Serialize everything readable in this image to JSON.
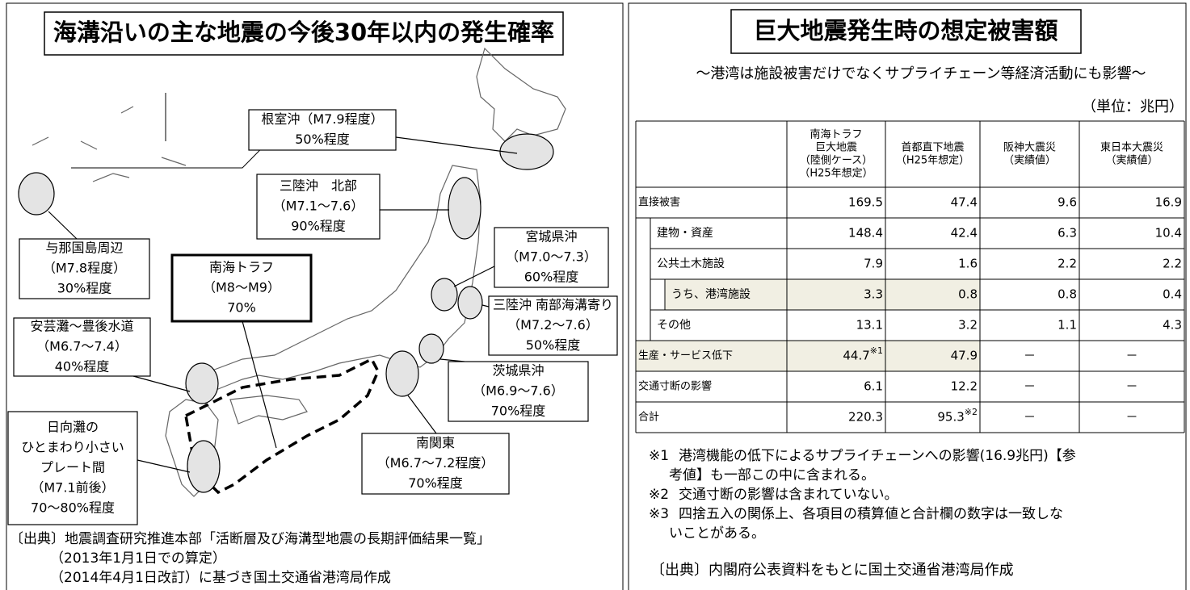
{
  "map": {
    "title": "海溝沿いの主な地震の今後30年以内の発生確率",
    "labels": [
      {
        "lines": [
          "根室沖（M7.9程度）",
          "50%程度"
        ]
      },
      {
        "lines": [
          "三陸沖　北部",
          "（M7.1～7.6）",
          "90%程度"
        ]
      },
      {
        "lines": [
          "宮城県沖",
          "（M7.0～7.3）",
          "60%程度"
        ]
      },
      {
        "lines": [
          "三陸沖 南部海溝寄り",
          "（M7.2～7.6）",
          "50%程度"
        ]
      },
      {
        "lines": [
          "茨城県沖",
          "（M6.9～7.6）",
          "70%程度"
        ]
      },
      {
        "lines": [
          "南関東",
          "（M6.7～7.2程度）",
          "70%程度"
        ]
      },
      {
        "lines": [
          "南海トラフ",
          "（M8～M9）",
          "70%"
        ]
      },
      {
        "lines": [
          "与那国島周辺",
          "（M7.8程度）",
          "30%程度"
        ]
      },
      {
        "lines": [
          "安芸灘～豊後水道",
          "（M6.7～7.4）",
          "40%程度"
        ]
      },
      {
        "lines": [
          "日向灘の",
          "ひとまわり小さい",
          "プレート間",
          "（M7.1前後）",
          "70～80%程度"
        ]
      }
    ],
    "source": [
      "〔出典〕地震調査研究推進本部「活断層及び海溝型地震の長期評価結果一覧」",
      "（2013年1月1日での算定）",
      "（2014年4月1日改訂）に基づき国土交通省港湾局作成"
    ]
  },
  "damage": {
    "title": "巨大地震発生時の想定被害額",
    "subtitle": "～港湾は施設被害だけでなくサプライチェーン等経済活動にも影響～",
    "unit": "（単位：兆円）",
    "table": {
      "columns": [
        [
          "南海トラフ",
          "巨大地震",
          "（陸側ケース）",
          "（H25年想定）"
        ],
        [
          "首都直下地震",
          "（H25年想定）"
        ],
        [
          "阪神大震災",
          "（実績値）"
        ],
        [
          "東日本大震災",
          "（実績値）"
        ]
      ],
      "rows": [
        {
          "label": "直接被害",
          "cells": [
            "169.5",
            "47.4",
            "9.6",
            "16.9"
          ]
        },
        {
          "label": "建物・資産",
          "cells": [
            "148.4",
            "42.4",
            "6.3",
            "10.4"
          ]
        },
        {
          "label": "公共土木施設",
          "cells": [
            "7.9",
            "1.6",
            "2.2",
            "2.2"
          ]
        },
        {
          "label": "うち、港湾施設",
          "cells": [
            "3.3",
            "0.8",
            "0.8",
            "0.4"
          ]
        },
        {
          "label": "その他",
          "cells": [
            "13.1",
            "3.2",
            "1.1",
            "4.3"
          ]
        },
        {
          "label": "生産・サービス低下",
          "cells": [
            {
              "text": "44.7",
              "sup": "※1"
            },
            "47.9",
            "－",
            "－"
          ]
        },
        {
          "label": "交通寸断の影響",
          "cells": [
            "6.1",
            "12.2",
            "－",
            "－"
          ]
        },
        {
          "label": "合計",
          "cells": [
            "220.3",
            {
              "text": "95.3",
              "sup": "※2"
            },
            "－",
            "－"
          ]
        }
      ]
    },
    "notes": [
      {
        "mark": "※1",
        "lines": [
          "港湾機能の低下によるサプライチェーンへの影響(16.9兆円)【参",
          "考値】も一部この中に含まれる。"
        ]
      },
      {
        "mark": "※2",
        "lines": [
          "交通寸断の影響は含まれていない。"
        ]
      },
      {
        "mark": "※3",
        "lines": [
          "四捨五入の関係上、各項目の積算値と合計欄の数字は一致しな",
          "いことがある。"
        ]
      }
    ],
    "source": "〔出典〕内閣府公表資料をもとに国土交通省港湾局作成"
  }
}
